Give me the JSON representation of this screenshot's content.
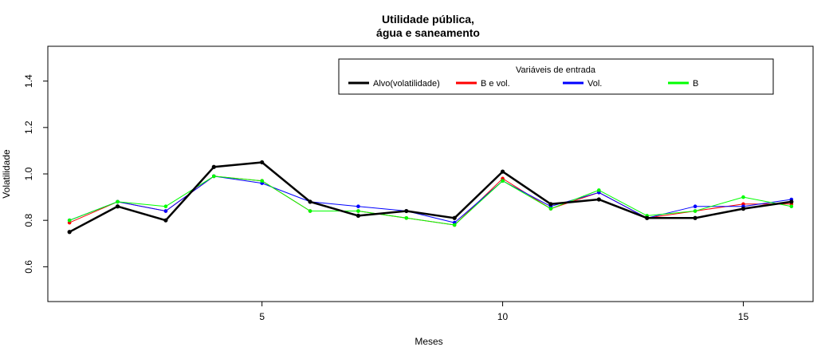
{
  "chart_data": {
    "type": "line",
    "title_lines": [
      "Utilidade pública,",
      "água e saneamento"
    ],
    "xlabel": "Meses",
    "ylabel": "Volatilidade",
    "xlim": [
      0.55,
      16.45
    ],
    "ylim": [
      0.45,
      1.55
    ],
    "xticks": [
      5,
      10,
      15
    ],
    "yticks": [
      0.6,
      0.8,
      1.0,
      1.2,
      1.4
    ],
    "ytick_labels": [
      "0.6",
      "0.8",
      "1.0",
      "1.2",
      "1.4"
    ],
    "x": [
      1,
      2,
      3,
      4,
      5,
      6,
      7,
      8,
      9,
      10,
      11,
      12,
      13,
      14,
      15,
      16
    ],
    "legend": {
      "title": "Variáveis de entrada",
      "placement": "top-right"
    },
    "series": [
      {
        "name": "B e vol.",
        "color": "#ff0000",
        "width": 1,
        "values": [
          0.79,
          0.88,
          0.84,
          0.99,
          0.97,
          0.84,
          0.84,
          0.81,
          0.78,
          0.98,
          0.85,
          0.92,
          0.81,
          0.84,
          0.87,
          0.87
        ]
      },
      {
        "name": "Vol.",
        "color": "#0000ff",
        "width": 1,
        "values": [
          0.8,
          0.88,
          0.84,
          0.99,
          0.96,
          0.88,
          0.86,
          0.84,
          0.79,
          0.97,
          0.86,
          0.92,
          0.81,
          0.86,
          0.86,
          0.89
        ]
      },
      {
        "name": "B",
        "color": "#00ff00",
        "width": 1,
        "values": [
          0.8,
          0.88,
          0.86,
          0.99,
          0.97,
          0.84,
          0.84,
          0.81,
          0.78,
          0.97,
          0.85,
          0.93,
          0.82,
          0.84,
          0.9,
          0.86
        ]
      },
      {
        "name": "Alvo(volatilidade)",
        "color": "#000000",
        "width": 2.5,
        "values": [
          0.75,
          0.86,
          0.8,
          1.03,
          1.05,
          0.88,
          0.82,
          0.84,
          0.81,
          1.01,
          0.87,
          0.89,
          0.81,
          0.81,
          0.85,
          0.88
        ]
      }
    ],
    "legend_order": [
      3,
      0,
      1,
      2
    ]
  }
}
